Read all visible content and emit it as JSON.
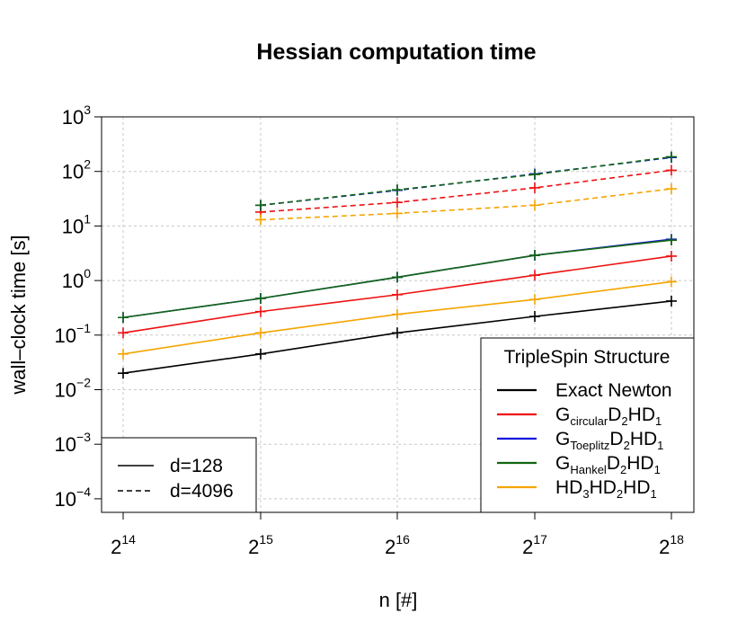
{
  "chart_data": {
    "type": "line",
    "title": "Hessian computation time",
    "xlabel": "n [#]",
    "ylabel": "wall–clock time [s]",
    "x_scale": "log2",
    "y_scale": "log10",
    "x": [
      14,
      15,
      16,
      17,
      18
    ],
    "x_tick_labels": [
      {
        "base": "2",
        "exp": "14"
      },
      {
        "base": "2",
        "exp": "15"
      },
      {
        "base": "2",
        "exp": "16"
      },
      {
        "base": "2",
        "exp": "17"
      },
      {
        "base": "2",
        "exp": "18"
      }
    ],
    "y_tick_labels": [
      {
        "base": "10",
        "exp": "3",
        "value": 1000
      },
      {
        "base": "10",
        "exp": "2",
        "value": 100
      },
      {
        "base": "10",
        "exp": "1",
        "value": 10
      },
      {
        "base": "10",
        "exp": "0",
        "value": 1
      },
      {
        "base": "10",
        "exp": "−1",
        "value": 0.1
      },
      {
        "base": "10",
        "exp": "−2",
        "value": 0.01
      },
      {
        "base": "10",
        "exp": "−3",
        "value": 0.001
      },
      {
        "base": "10",
        "exp": "−4",
        "value": 0.0001
      }
    ],
    "ylim": [
      0.0001,
      1000
    ],
    "grid": true,
    "series": [
      {
        "name": "Exact Newton",
        "color": "#000000",
        "d": "128",
        "x": [
          14,
          15,
          16,
          17,
          18
        ],
        "values": [
          0.02,
          0.045,
          0.11,
          0.22,
          0.42
        ]
      },
      {
        "name": "G_circular D2 HD1",
        "color": "#ee1111",
        "d": "128",
        "x": [
          14,
          15,
          16,
          17,
          18
        ],
        "values": [
          0.11,
          0.27,
          0.55,
          1.25,
          2.8
        ]
      },
      {
        "name": "G_Toeplitz D2 HD1",
        "color": "#1111dd",
        "d": "128",
        "x": [
          14,
          15,
          16,
          17,
          18
        ],
        "values": [
          0.21,
          0.47,
          1.15,
          2.9,
          5.7
        ]
      },
      {
        "name": "G_Hankel D2 HD1",
        "color": "#116611",
        "d": "128",
        "x": [
          14,
          15,
          16,
          17,
          18
        ],
        "values": [
          0.21,
          0.47,
          1.15,
          2.9,
          5.5
        ]
      },
      {
        "name": "HD3 HD2 HD1",
        "color": "#f5a500",
        "d": "128",
        "x": [
          14,
          15,
          16,
          17,
          18
        ],
        "values": [
          0.045,
          0.11,
          0.24,
          0.45,
          0.95
        ]
      },
      {
        "name": "G_circular D2 HD1",
        "color": "#ee1111",
        "d": "4096",
        "x": [
          15,
          16,
          17,
          18
        ],
        "values": [
          18,
          27,
          50,
          105
        ]
      },
      {
        "name": "G_Toeplitz D2 HD1",
        "color": "#1111dd",
        "d": "4096",
        "x": [
          15,
          16,
          17,
          18
        ],
        "values": [
          24,
          45,
          90,
          180
        ]
      },
      {
        "name": "G_Hankel D2 HD1",
        "color": "#116611",
        "d": "4096",
        "x": [
          15,
          16,
          17,
          18
        ],
        "values": [
          24,
          46,
          88,
          185
        ]
      },
      {
        "name": "HD3 HD2 HD1",
        "color": "#f5a500",
        "d": "4096",
        "x": [
          15,
          16,
          17,
          18
        ],
        "values": [
          13,
          17,
          24,
          48
        ]
      }
    ],
    "legend_structure": {
      "title": "TripleSpin Structure",
      "position": "bottom-right",
      "items": [
        {
          "color": "#000000",
          "parts": [
            {
              "t": "Exact Newton",
              "sub": false
            }
          ]
        },
        {
          "color": "#ee1111",
          "parts": [
            {
              "t": "G",
              "sub": false
            },
            {
              "t": "circular",
              "sub": true
            },
            {
              "t": "D",
              "sub": false
            },
            {
              "t": "2",
              "sub": true
            },
            {
              "t": "HD",
              "sub": false
            },
            {
              "t": "1",
              "sub": true
            }
          ]
        },
        {
          "color": "#1111dd",
          "parts": [
            {
              "t": "G",
              "sub": false
            },
            {
              "t": "Toeplitz",
              "sub": true
            },
            {
              "t": "D",
              "sub": false
            },
            {
              "t": "2",
              "sub": true
            },
            {
              "t": "HD",
              "sub": false
            },
            {
              "t": "1",
              "sub": true
            }
          ]
        },
        {
          "color": "#116611",
          "parts": [
            {
              "t": "G",
              "sub": false
            },
            {
              "t": "Hankel",
              "sub": true
            },
            {
              "t": "D",
              "sub": false
            },
            {
              "t": "2",
              "sub": true
            },
            {
              "t": "HD",
              "sub": false
            },
            {
              "t": "1",
              "sub": true
            }
          ]
        },
        {
          "color": "#f5a500",
          "parts": [
            {
              "t": "HD",
              "sub": false
            },
            {
              "t": "3",
              "sub": true
            },
            {
              "t": "HD",
              "sub": false
            },
            {
              "t": "2",
              "sub": true
            },
            {
              "t": "HD",
              "sub": false
            },
            {
              "t": "1",
              "sub": true
            }
          ]
        }
      ]
    },
    "legend_dimension": {
      "position": "bottom-left",
      "items": [
        {
          "label": "d=128",
          "style": "solid"
        },
        {
          "label": "d=4096",
          "style": "dashed"
        }
      ]
    }
  }
}
